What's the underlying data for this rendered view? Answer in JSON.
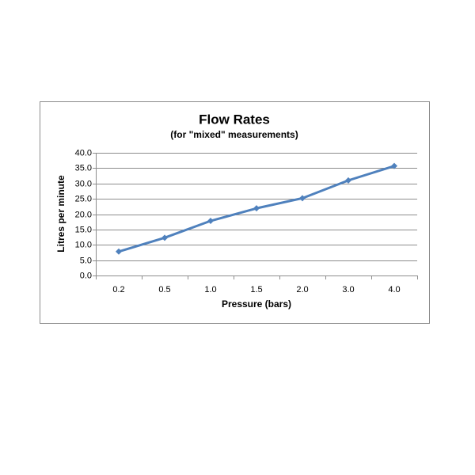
{
  "chart_data": {
    "type": "line",
    "title": "Flow Rates",
    "subtitle": "(for \"mixed\" measurements)",
    "x_label": "Pressure (bars)",
    "y_label": "Litres per minute",
    "categories": [
      "0.2",
      "0.5",
      "1.0",
      "1.5",
      "2.0",
      "3.0",
      "4.0"
    ],
    "values": [
      7.8,
      12.3,
      17.8,
      21.9,
      25.2,
      31.0,
      35.7
    ],
    "color": "#4f81bd",
    "ylim": [
      0,
      40
    ],
    "yticks": [
      {
        "value": 0,
        "label": "0.0"
      },
      {
        "value": 5,
        "label": "5.0"
      },
      {
        "value": 10,
        "label": "10.0"
      },
      {
        "value": 15,
        "label": "15.0"
      },
      {
        "value": 20,
        "label": "20.0"
      },
      {
        "value": 25,
        "label": "25.0"
      },
      {
        "value": 30,
        "label": "30.0"
      },
      {
        "value": 35,
        "label": "35.0"
      },
      {
        "value": 40,
        "label": "40.0"
      }
    ],
    "grid": true
  }
}
